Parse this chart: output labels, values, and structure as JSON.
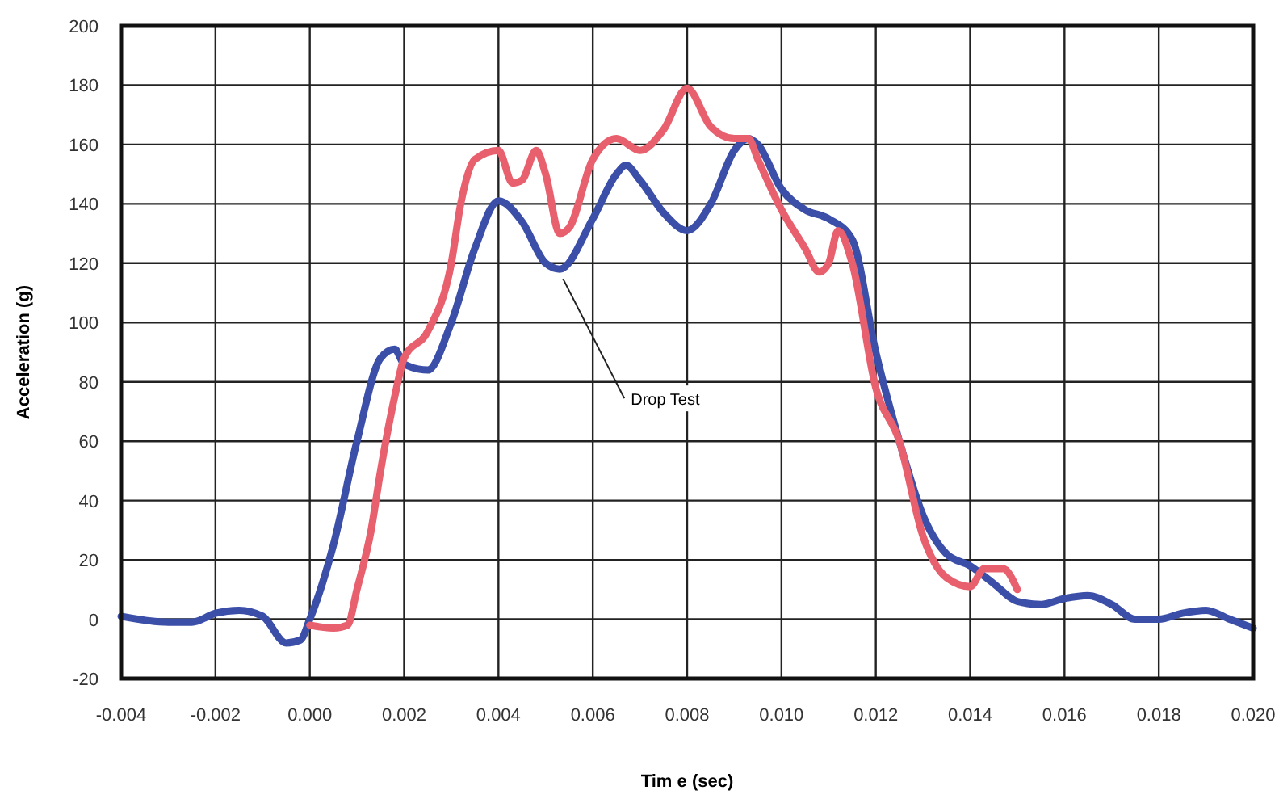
{
  "chart_data": {
    "type": "line",
    "xlabel": "Tim e (sec)",
    "ylabel": "Acceleration (g)",
    "xlim": [
      -0.004,
      0.02
    ],
    "ylim": [
      -20,
      200
    ],
    "xticks": [
      {
        "value": -0.004,
        "label": "-0.004"
      },
      {
        "value": -0.002,
        "label": "-0.002"
      },
      {
        "value": 0,
        "label": "0.000"
      },
      {
        "value": 0.002,
        "label": "0.002"
      },
      {
        "value": 0.004,
        "label": "0.004"
      },
      {
        "value": 0.006,
        "label": "0.006"
      },
      {
        "value": 0.008,
        "label": "0.008"
      },
      {
        "value": 0.01,
        "label": "0.010"
      },
      {
        "value": 0.012,
        "label": "0.012"
      },
      {
        "value": 0.014,
        "label": "0.014"
      },
      {
        "value": 0.016,
        "label": "0.016"
      },
      {
        "value": 0.018,
        "label": "0.018"
      },
      {
        "value": 0.02,
        "label": "0.020"
      }
    ],
    "yticks": [
      -20,
      0,
      20,
      40,
      60,
      80,
      100,
      120,
      140,
      160,
      180,
      200
    ],
    "grid": true,
    "line_style": "solid",
    "series": [
      {
        "name": "Drop Test",
        "color": "#3b4fa8",
        "x": [
          -0.004,
          -0.003,
          -0.0025,
          -0.002,
          -0.0015,
          -0.001,
          -0.0005,
          -0.0002,
          0,
          0.0005,
          0.001,
          0.0015,
          0.0018,
          0.002,
          0.0025,
          0.003,
          0.0035,
          0.004,
          0.0045,
          0.005,
          0.0053,
          0.006,
          0.0065,
          0.0067,
          0.007,
          0.0075,
          0.008,
          0.0085,
          0.009,
          0.0093,
          0.0095,
          0.01,
          0.0105,
          0.011,
          0.0115,
          0.012,
          0.0125,
          0.013,
          0.0135,
          0.014,
          0.0145,
          0.015,
          0.0155,
          0.016,
          0.0165,
          0.017,
          0.0175,
          0.018,
          0.0185,
          0.019,
          0.0195,
          0.02
        ],
        "values": [
          1,
          -1,
          -1,
          2,
          3,
          1,
          -8,
          -7,
          0,
          25,
          60,
          88,
          91,
          86,
          84,
          100,
          125,
          141,
          134,
          120,
          118,
          135,
          150,
          153,
          148,
          137,
          131,
          140,
          158,
          162,
          160,
          145,
          138,
          135,
          128,
          90,
          60,
          35,
          22,
          18,
          12,
          6,
          5,
          7,
          8,
          5,
          0,
          0,
          2,
          3,
          0,
          -3
        ]
      },
      {
        "color": "#e8606e",
        "x": [
          0,
          0.0005,
          0.0008,
          0.001,
          0.0013,
          0.0015,
          0.0018,
          0.002,
          0.0025,
          0.003,
          0.0032,
          0.0035,
          0.004,
          0.0043,
          0.0045,
          0.0048,
          0.005,
          0.0053,
          0.0055,
          0.006,
          0.0065,
          0.007,
          0.0075,
          0.008,
          0.0085,
          0.009,
          0.0093,
          0.0095,
          0.01,
          0.0105,
          0.0108,
          0.011,
          0.0112,
          0.0115,
          0.012,
          0.0125,
          0.013,
          0.0135,
          0.014,
          0.0143,
          0.0147,
          0.015
        ],
        "values": [
          -2,
          -3,
          -2,
          10,
          30,
          50,
          75,
          88,
          97,
          120,
          140,
          155,
          158,
          147,
          148,
          158,
          150,
          130,
          132,
          155,
          162,
          158,
          165,
          179,
          166,
          162,
          162,
          155,
          138,
          125,
          117,
          120,
          131,
          120,
          78,
          60,
          28,
          14,
          11,
          17,
          17,
          10
        ]
      }
    ]
  }
}
